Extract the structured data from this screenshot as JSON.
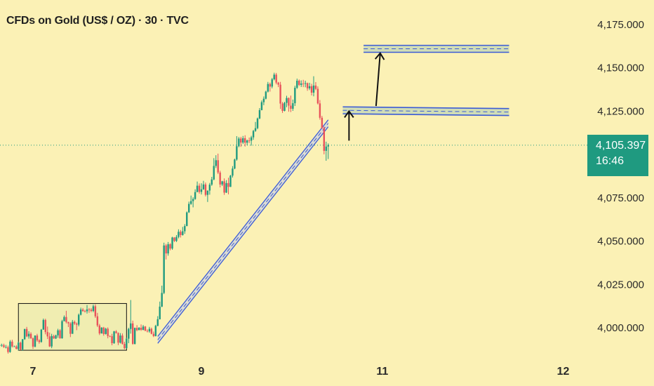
{
  "title": "CFDs on Gold (US$ / OZ) · 30 · TVC",
  "colors": {
    "background": "#fbf1b5",
    "up": "#1f9a80",
    "down": "#e8525b",
    "channel": "#3b5bd6",
    "zone_fill": "#c9dbb6",
    "current_line": "#1f9a80",
    "arrow": "#111111",
    "range_box": "#111111",
    "range_fill": "#f0edb1"
  },
  "price_badge": {
    "value": "4,105.397",
    "countdown": "16:46"
  },
  "chart_data": {
    "type": "candlestick",
    "title": "CFDs on Gold (US$ / OZ) · 30 · TVC",
    "ylim": [
      3987,
      4187
    ],
    "y_ticks": [
      {
        "value": 4175,
        "label": "4,175.000"
      },
      {
        "value": 4150,
        "label": "4,150.000"
      },
      {
        "value": 4125,
        "label": "4,125.000"
      },
      {
        "value": 4075,
        "label": "4,075.000"
      },
      {
        "value": 4050,
        "label": "4,050.000"
      },
      {
        "value": 4025,
        "label": "4,025.000"
      },
      {
        "value": 4000,
        "label": "4,000.000"
      }
    ],
    "x_labels": [
      {
        "label": "7",
        "x": 0
      },
      {
        "label": "9",
        "x": 81
      },
      {
        "label": "11",
        "x": 168
      },
      {
        "label": "12",
        "x": 255
      }
    ],
    "current_price": 4105.397,
    "candles": [
      [
        -16,
        3990.0,
        3991.0,
        3989.0,
        3990.0
      ],
      [
        -15,
        3990.0,
        3990.8,
        3989.0,
        3990.0
      ],
      [
        -14,
        3990.0,
        3990.8,
        3988.4,
        3988.8
      ],
      [
        -13,
        3988.8,
        3990.1,
        3988.1,
        3988.8
      ],
      [
        -12,
        3988.8,
        3989.7,
        3985.1,
        3986.0
      ],
      [
        -11,
        3986.0,
        3992.9,
        3985.6,
        3992.0
      ],
      [
        -10,
        3992.0,
        3993.1,
        3988.6,
        3989.2
      ],
      [
        -9,
        3989.2,
        3989.7,
        3988.9,
        3989.2
      ],
      [
        -8,
        3989.2,
        3990.0,
        3987.5,
        3987.8
      ],
      [
        -7,
        3987.8,
        3992.0,
        3986.9,
        3991.4
      ],
      [
        -6,
        3991.4,
        3992.0,
        3987.2,
        3987.5
      ],
      [
        -5,
        3987.5,
        3993.4,
        3986.7,
        3993.4
      ],
      [
        -4,
        3993.4,
        3999.3,
        3993.0,
        3999.3
      ],
      [
        -3,
        3999.3,
        4000.5,
        3994.6,
        3995.0
      ],
      [
        -2,
        3995.0,
        3998.0,
        3993.7,
        3996.5
      ],
      [
        -1,
        3996.5,
        3997.4,
        3993.6,
        3993.9
      ],
      [
        0,
        3993.9,
        3994.4,
        3987.8,
        3989.1
      ],
      [
        1,
        3989.1,
        3995.6,
        3988.7,
        3995.5
      ],
      [
        2,
        3995.5,
        3996.5,
        3991.9,
        3992.7
      ],
      [
        3,
        3992.7,
        3993.4,
        3990.8,
        3991.8
      ],
      [
        4,
        3991.8,
        3999.3,
        3991.4,
        3998.9
      ],
      [
        5,
        3998.9,
        4005.3,
        3998.9,
        4004.5
      ],
      [
        6,
        4004.5,
        4005.2,
        3996.2,
        3997.5
      ],
      [
        7,
        3997.5,
        4000.7,
        3993.5,
        3995.0
      ],
      [
        8,
        3995.0,
        3997.2,
        3988.9,
        3989.2
      ],
      [
        9,
        3989.2,
        3996.5,
        3988.2,
        3995.2
      ],
      [
        10,
        3995.2,
        3996.0,
        3993.6,
        3993.8
      ],
      [
        11,
        3993.8,
        3996.0,
        3993.5,
        3995.6
      ],
      [
        12,
        3995.6,
        3999.4,
        3994.2,
        3998.5
      ],
      [
        13,
        3998.5,
        3999.2,
        3993.7,
        3993.9
      ],
      [
        14,
        3993.9,
        4004.6,
        3993.7,
        4003.8
      ],
      [
        15,
        4003.8,
        4007.1,
        4003.7,
        4006.2
      ],
      [
        16,
        4006.2,
        4009.8,
        4002.5,
        4003.3
      ],
      [
        17,
        4003.3,
        4003.5,
        4000.4,
        4002.5
      ],
      [
        18,
        4002.5,
        4003.2,
        3994.6,
        3996.5
      ],
      [
        19,
        3996.5,
        4004.5,
        3996.5,
        4003.4
      ],
      [
        20,
        4003.4,
        4004.2,
        4001.6,
        4002.4
      ],
      [
        21,
        4002.4,
        4003.1,
        3998.6,
        4001.8
      ],
      [
        22,
        4001.8,
        4008.2,
        4000.8,
        4007.5
      ],
      [
        23,
        4007.5,
        4011.6,
        4007.1,
        4010.5
      ],
      [
        24,
        4010.5,
        4011.4,
        4009.3,
        4009.6
      ],
      [
        25,
        4009.6,
        4010.3,
        4008.8,
        4009.5
      ],
      [
        26,
        4009.5,
        4013.1,
        4008.2,
        4010.6
      ],
      [
        27,
        4010.6,
        4011.4,
        4008.6,
        4010.4
      ],
      [
        28,
        4010.4,
        4011.3,
        4009.0,
        4009.7
      ],
      [
        29,
        4009.7,
        4013.4,
        4009.0,
        4012.4
      ],
      [
        30,
        4012.4,
        4013.5,
        4005.7,
        4006.6
      ],
      [
        31,
        4006.6,
        4008.6,
        4000.4,
        4001.3
      ],
      [
        32,
        4001.3,
        4002.2,
        3995.8,
        3996.7
      ],
      [
        33,
        3996.7,
        4000.3,
        3996.7,
        4000.1
      ],
      [
        34,
        4000.1,
        4000.5,
        3995.4,
        3996.4
      ],
      [
        35,
        3996.4,
        4000.0,
        3996.1,
        3999.4
      ],
      [
        36,
        3999.4,
        4000.2,
        3993.9,
        3995.2
      ],
      [
        37,
        3995.2,
        3995.6,
        3994.6,
        3995.1
      ],
      [
        38,
        3995.1,
        3996.5,
        3989.9,
        3991.1
      ],
      [
        39,
        3991.1,
        3998.2,
        3990.7,
        3997.9
      ],
      [
        40,
        3997.9,
        3998.6,
        3996.6,
        3997.0
      ],
      [
        41,
        3997.0,
        3997.3,
        3990.0,
        3991.4
      ],
      [
        42,
        3991.4,
        3996.9,
        3990.9,
        3995.5
      ],
      [
        43,
        3995.5,
        3996.7,
        3990.3,
        3990.7
      ],
      [
        44,
        3990.7,
        3991.9,
        3987.6,
        3988.2
      ],
      [
        45,
        3988.2,
        3994.2,
        3987.9,
        3993.7
      ],
      [
        46,
        3993.7,
        4000.0,
        3991.1,
        3999.3
      ],
      [
        47,
        3999.3,
        4016.0,
        3996.6,
        4002.5
      ],
      [
        48,
        4002.5,
        4004.1,
        3990.2,
        3990.7
      ],
      [
        49,
        3990.7,
        4000.1,
        3990.3,
        3999.9
      ],
      [
        50,
        3999.9,
        4001.5,
        3998.0,
        3998.6
      ],
      [
        51,
        3998.6,
        4000.4,
        3998.6,
        4000.0
      ],
      [
        52,
        4000.0,
        4001.9,
        3998.2,
        3998.8
      ],
      [
        53,
        3998.8,
        4001.6,
        3998.5,
        4000.7
      ],
      [
        54,
        4000.7,
        4001.0,
        3998.1,
        3998.2
      ],
      [
        55,
        3998.2,
        3999.1,
        3997.3,
        3997.9
      ],
      [
        56,
        3997.9,
        4000.5,
        3997.1,
        3999.4
      ],
      [
        57,
        3999.4,
        4000.1,
        3996.2,
        3996.5
      ],
      [
        58,
        3996.5,
        3997.8,
        3994.6,
        3995.2
      ],
      [
        59,
        3995.2,
        4001.7,
        3995.0,
        4001.1
      ],
      [
        60,
        4001.1,
        4006.7,
        4000.8,
        4004.9
      ],
      [
        61,
        4004.9,
        4015.1,
        4004.8,
        4012.2
      ],
      [
        62,
        4012.2,
        4024.3,
        4011.9,
        4020.1
      ],
      [
        63,
        4020.1,
        4049.1,
        4019.4,
        4047.5
      ],
      [
        64,
        4047.5,
        4048.4,
        4039.4,
        4042.9
      ],
      [
        65,
        4042.9,
        4049.5,
        4041.6,
        4048.2
      ],
      [
        66,
        4048.2,
        4048.8,
        4044.7,
        4045.7
      ],
      [
        67,
        4045.7,
        4052.5,
        4045.0,
        4052.1
      ],
      [
        68,
        4052.1,
        4052.3,
        4049.5,
        4050.1
      ],
      [
        69,
        4050.1,
        4053.5,
        4049.5,
        4052.4
      ],
      [
        70,
        4052.4,
        4056.8,
        4051.6,
        4055.4
      ],
      [
        71,
        4055.4,
        4056.4,
        4052.1,
        4053.5
      ],
      [
        72,
        4053.5,
        4058.2,
        4053.2,
        4055.7
      ],
      [
        73,
        4055.7,
        4059.8,
        4054.2,
        4058.7
      ],
      [
        74,
        4058.7,
        4067.1,
        4058.6,
        4066.6
      ],
      [
        75,
        4066.6,
        4072.8,
        4066.3,
        4071.5
      ],
      [
        76,
        4071.5,
        4076.3,
        4071.0,
        4073.1
      ],
      [
        77,
        4073.1,
        4075.3,
        4069.5,
        4074.3
      ],
      [
        78,
        4074.3,
        4079.9,
        4073.9,
        4078.3
      ],
      [
        79,
        4078.3,
        4084.4,
        4078.3,
        4082.0
      ],
      [
        80,
        4082.0,
        4083.3,
        4077.4,
        4078.4
      ],
      [
        81,
        4078.4,
        4083.4,
        4076.9,
        4079.9
      ],
      [
        82,
        4079.9,
        4084.8,
        4079.6,
        4082.7
      ],
      [
        83,
        4082.7,
        4083.8,
        4075.8,
        4076.7
      ],
      [
        84,
        4076.7,
        4078.8,
        4072.6,
        4079.2
      ],
      [
        85,
        4079.2,
        4083.6,
        4076.8,
        4082.6
      ],
      [
        86,
        4082.6,
        4087.1,
        4081.9,
        4085.6
      ],
      [
        87,
        4085.6,
        4097.9,
        4085.1,
        4093.4
      ],
      [
        88,
        4093.4,
        4099.6,
        4092.2,
        4096.7
      ],
      [
        89,
        4096.7,
        4100.5,
        4088.7,
        4089.6
      ],
      [
        90,
        4089.6,
        4090.6,
        4081.0,
        4082.7
      ],
      [
        91,
        4082.7,
        4084.8,
        4081.8,
        4084.5
      ],
      [
        92,
        4084.5,
        4086.2,
        4076.7,
        4078.0
      ],
      [
        93,
        4078.0,
        4085.2,
        4077.8,
        4083.5
      ],
      [
        94,
        4083.5,
        4086.6,
        4077.0,
        4081.3
      ],
      [
        95,
        4081.3,
        4088.2,
        4081.3,
        4087.8
      ],
      [
        96,
        4087.8,
        4093.3,
        4086.7,
        4091.9
      ],
      [
        97,
        4091.9,
        4097.6,
        4091.5,
        4097.1
      ],
      [
        98,
        4097.1,
        4110.6,
        4096.4,
        4104.8
      ],
      [
        99,
        4104.8,
        4110.1,
        4104.2,
        4109.2
      ],
      [
        100,
        4109.2,
        4110.2,
        4104.4,
        4106.9
      ],
      [
        101,
        4106.9,
        4110.7,
        4106.1,
        4109.4
      ],
      [
        102,
        4109.4,
        4111.1,
        4104.6,
        4106.8
      ],
      [
        103,
        4106.8,
        4108.6,
        4105.3,
        4108.1
      ],
      [
        104,
        4108.1,
        4109.8,
        4106.6,
        4108.0
      ],
      [
        105,
        4108.0,
        4110.8,
        4105.1,
        4109.9
      ],
      [
        106,
        4109.9,
        4114.2,
        4108.5,
        4113.6
      ],
      [
        107,
        4113.6,
        4118.8,
        4113.1,
        4115.2
      ],
      [
        108,
        4115.2,
        4121.3,
        4114.6,
        4120.8
      ],
      [
        109,
        4120.8,
        4126.8,
        4120.4,
        4125.6
      ],
      [
        110,
        4125.6,
        4131.2,
        4125.5,
        4130.2
      ],
      [
        111,
        4130.2,
        4133.5,
        4128.5,
        4132.2
      ],
      [
        112,
        4132.2,
        4136.8,
        4131.8,
        4136.3
      ],
      [
        113,
        4136.3,
        4141.9,
        4135.8,
        4140.7
      ],
      [
        114,
        4140.7,
        4141.5,
        4136.3,
        4139.2
      ],
      [
        115,
        4139.2,
        4144.2,
        4138.2,
        4143.4
      ],
      [
        116,
        4143.4,
        4147.2,
        4142.8,
        4146.1
      ],
      [
        117,
        4146.1,
        4147.1,
        4140.5,
        4141.5
      ],
      [
        118,
        4141.5,
        4141.9,
        4138.9,
        4140.3
      ],
      [
        119,
        4140.3,
        4141.9,
        4126.3,
        4129.4
      ],
      [
        120,
        4129.4,
        4130.3,
        4124.0,
        4125.2
      ],
      [
        121,
        4125.2,
        4130.4,
        4124.9,
        4129.8
      ],
      [
        122,
        4129.8,
        4133.9,
        4127.3,
        4132.6
      ],
      [
        123,
        4132.6,
        4132.9,
        4124.7,
        4128.2
      ],
      [
        124,
        4128.2,
        4134.0,
        4124.5,
        4126.4
      ],
      [
        125,
        4126.4,
        4131.7,
        4125.2,
        4129.6
      ],
      [
        126,
        4129.6,
        4139.7,
        4128.0,
        4138.5
      ],
      [
        127,
        4138.5,
        4143.8,
        4137.9,
        4142.6
      ],
      [
        128,
        4142.6,
        4143.3,
        4139.6,
        4140.2
      ],
      [
        129,
        4140.2,
        4142.8,
        4139.0,
        4141.0
      ],
      [
        130,
        4141.0,
        4143.1,
        4138.9,
        4140.8
      ],
      [
        131,
        4140.8,
        4142.6,
        4138.8,
        4141.2
      ],
      [
        132,
        4141.2,
        4141.5,
        4136.8,
        4138.2
      ],
      [
        133,
        4138.2,
        4141.4,
        4137.2,
        4139.4
      ],
      [
        134,
        4139.4,
        4140.8,
        4134.1,
        4135.7
      ],
      [
        135,
        4135.7,
        4145.2,
        4133.6,
        4139.8
      ],
      [
        136,
        4139.8,
        4141.8,
        4137.2,
        4137.9
      ],
      [
        137,
        4137.9,
        4139.3,
        4128.9,
        4129.5
      ],
      [
        138,
        4129.5,
        4131.4,
        4120.1,
        4121.2
      ],
      [
        139,
        4121.2,
        4122.3,
        4114.8,
        4115.3
      ],
      [
        140,
        4115.3,
        4116.1,
        4100.1,
        4102.1
      ],
      [
        141,
        4102.1,
        4107.4,
        4096.4,
        4104.6
      ],
      [
        142,
        4104.6,
        4106.4,
        4097.4,
        4105.4
      ]
    ],
    "channel": {
      "lower_start": [
        60,
        3991.0
      ],
      "lower_end": [
        142,
        4116.0
      ],
      "upper_start": [
        60,
        3995.0
      ],
      "upper_end": [
        142,
        4120.0
      ]
    },
    "zones": [
      {
        "x_start": 149,
        "x_end": 229,
        "y_left": [
          4123.5,
          4127.5
        ],
        "y_right": [
          4122.5,
          4126.5
        ]
      },
      {
        "x_start": 159,
        "x_end": 229,
        "y_left": [
          4159.0,
          4163.0
        ],
        "y_right": [
          4159.0,
          4163.0
        ]
      }
    ],
    "range_box": {
      "x_start": -7,
      "x_end": 45,
      "y_top": 4014.0,
      "y_bottom": 3987.0
    },
    "arrows": [
      {
        "from": [
          152,
          4108.0
        ],
        "to": [
          152,
          4125.0
        ]
      },
      {
        "from": [
          165,
          4128.0
        ],
        "to": [
          167,
          4158.5
        ]
      }
    ]
  }
}
